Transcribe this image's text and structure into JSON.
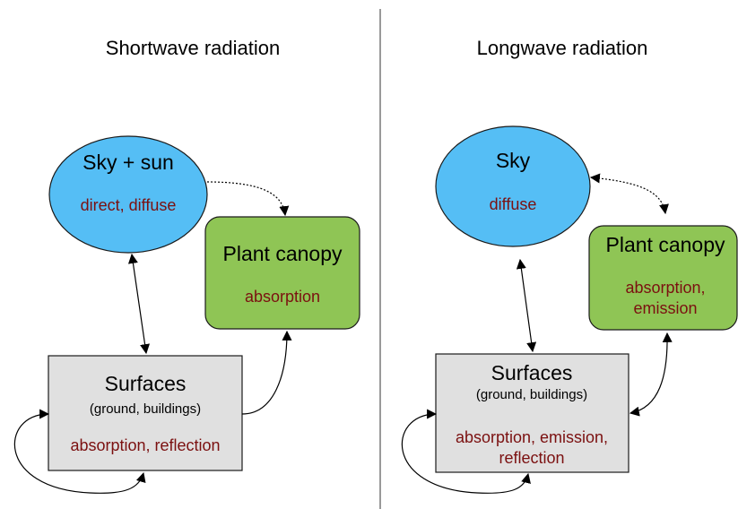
{
  "panels": [
    {
      "title": "Shortwave radiation",
      "nodes": [
        {
          "label": "Sky + sun",
          "details": [
            "direct, diffuse"
          ]
        },
        {
          "label": "Plant canopy",
          "details": [
            "absorption"
          ]
        },
        {
          "label": "Surfaces",
          "sublabel": "(ground, buildings)",
          "details": [
            "absorption, reflection"
          ]
        }
      ]
    },
    {
      "title": "Longwave radiation",
      "nodes": [
        {
          "label": "Sky",
          "details": [
            "diffuse"
          ]
        },
        {
          "label": "Plant canopy",
          "details": [
            "absorption,",
            "emission"
          ]
        },
        {
          "label": "Surfaces",
          "sublabel": "(ground, buildings)",
          "details": [
            "absorption, emission,",
            "reflection"
          ]
        }
      ]
    }
  ]
}
